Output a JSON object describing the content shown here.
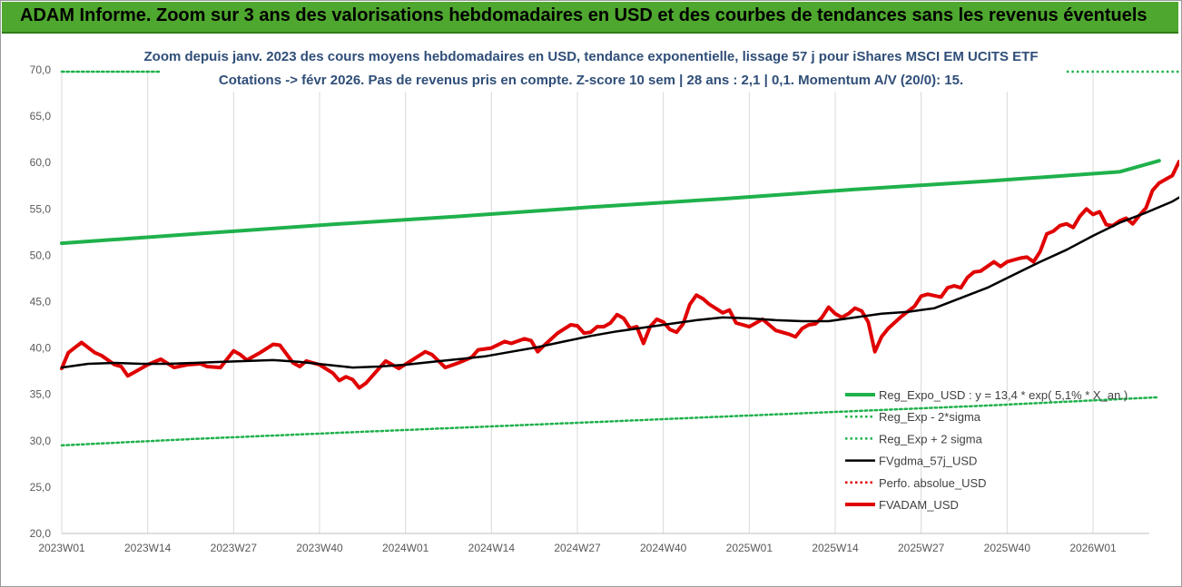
{
  "header": {
    "title": "ADAM Informe. Zoom sur 3 ans des valorisations hebdomadaires en USD et des courbes de tendances sans les revenus éventuels"
  },
  "chart_data": {
    "type": "line",
    "title_line1": "Zoom depuis janv. 2023 des cours moyens hebdomadaires en USD, tendance exponentielle, lissage 57 j pour iShares MSCI EM UCITS ETF",
    "title_line2": "Cotations -> févr 2026. Pas de revenus pris en compte. Z-score 10 sem | 28 ans : 2,1 | 0,1. Momentum A/V (20/0): 15.",
    "x_tick_labels": [
      "2023W01",
      "2023W14",
      "2023W27",
      "2023W40",
      "2024W01",
      "2024W14",
      "2024W27",
      "2024W40",
      "2025W01",
      "2025W14",
      "2025W27",
      "2025W40",
      "2026W01"
    ],
    "y_tick_labels": [
      "70,0",
      "65,0",
      "60,0",
      "55,0",
      "50,0",
      "45,0",
      "40,0",
      "35,0",
      "30,0",
      "25,0",
      "20,0"
    ],
    "ylim": [
      20,
      70
    ],
    "grid": "vertical",
    "legend_position": "bottom-right",
    "colors": {
      "reg_expo": "#1fb14c",
      "reg_lower": "#1fb14c",
      "reg_upper": "#1fb14c",
      "fvgdma": "#000000",
      "perfo": "#e00000",
      "fvadam": "#e00000",
      "header": "#4ea72e"
    },
    "series": [
      {
        "name": "Reg_Expo_USD : y = 13,4 * exp( 5,1% * X_an.)",
        "style": "solid-thick",
        "points": [
          [
            0,
            51.3
          ],
          [
            20,
            52.3
          ],
          [
            40,
            53.3
          ],
          [
            60,
            54.2
          ],
          [
            80,
            55.2
          ],
          [
            100,
            56.1
          ],
          [
            120,
            57.1
          ],
          [
            140,
            58.0
          ],
          [
            160,
            59.0
          ],
          [
            166,
            60.2
          ]
        ]
      },
      {
        "name": "Reg_Exp - 2*sigma",
        "style": "dotted",
        "points": [
          [
            0,
            29.5
          ],
          [
            20,
            30.2
          ],
          [
            40,
            30.8
          ],
          [
            60,
            31.4
          ],
          [
            80,
            32.0
          ],
          [
            100,
            32.6
          ],
          [
            120,
            33.2
          ],
          [
            140,
            33.8
          ],
          [
            166,
            34.7
          ]
        ]
      },
      {
        "name": "Reg_Exp + 2 sigma",
        "style": "dotted",
        "points": [
          [
            0,
            69.8
          ],
          [
            15,
            69.8
          ]
        ]
      },
      {
        "name": "FVgdma_57j_USD",
        "style": "solid",
        "points": [
          [
            0,
            37.9
          ],
          [
            4,
            38.3
          ],
          [
            8,
            38.4
          ],
          [
            12,
            38.3
          ],
          [
            16,
            38.3
          ],
          [
            20,
            38.4
          ],
          [
            24,
            38.5
          ],
          [
            28,
            38.6
          ],
          [
            32,
            38.7
          ],
          [
            36,
            38.5
          ],
          [
            40,
            38.2
          ],
          [
            44,
            37.9
          ],
          [
            48,
            38.0
          ],
          [
            52,
            38.2
          ],
          [
            56,
            38.5
          ],
          [
            60,
            38.8
          ],
          [
            64,
            39.1
          ],
          [
            68,
            39.6
          ],
          [
            72,
            40.1
          ],
          [
            76,
            40.7
          ],
          [
            80,
            41.3
          ],
          [
            84,
            41.8
          ],
          [
            88,
            42.2
          ],
          [
            92,
            42.6
          ],
          [
            96,
            43.0
          ],
          [
            100,
            43.3
          ],
          [
            104,
            43.2
          ],
          [
            108,
            43.0
          ],
          [
            112,
            42.9
          ],
          [
            116,
            42.9
          ],
          [
            120,
            43.3
          ],
          [
            124,
            43.7
          ],
          [
            128,
            43.9
          ],
          [
            132,
            44.3
          ],
          [
            136,
            45.4
          ],
          [
            140,
            46.5
          ],
          [
            144,
            47.9
          ],
          [
            148,
            49.3
          ],
          [
            152,
            50.6
          ],
          [
            156,
            52.1
          ],
          [
            160,
            53.5
          ],
          [
            164,
            54.6
          ],
          [
            168,
            55.8
          ],
          [
            172,
            57.5
          ],
          [
            176,
            59.0
          ],
          [
            180,
            60.2
          ]
        ]
      },
      {
        "name": "Perfo. absolue_USD",
        "style": "dotted",
        "points": []
      },
      {
        "name": "FVADAM_USD",
        "style": "solid-thick",
        "points": [
          [
            0,
            37.8
          ],
          [
            1,
            39.5
          ],
          [
            3,
            40.6
          ],
          [
            5,
            39.5
          ],
          [
            6,
            39.2
          ],
          [
            8,
            38.2
          ],
          [
            9,
            38.0
          ],
          [
            10,
            37.0
          ],
          [
            11,
            37.4
          ],
          [
            13,
            38.2
          ],
          [
            15,
            38.8
          ],
          [
            17,
            37.9
          ],
          [
            19,
            38.2
          ],
          [
            21,
            38.3
          ],
          [
            22,
            38.0
          ],
          [
            24,
            37.9
          ],
          [
            26,
            39.7
          ],
          [
            27,
            39.3
          ],
          [
            28,
            38.7
          ],
          [
            30,
            39.5
          ],
          [
            32,
            40.4
          ],
          [
            33,
            40.3
          ],
          [
            35,
            38.4
          ],
          [
            36,
            38.0
          ],
          [
            37,
            38.6
          ],
          [
            39,
            38.2
          ],
          [
            41,
            37.3
          ],
          [
            42,
            36.5
          ],
          [
            43,
            36.9
          ],
          [
            44,
            36.6
          ],
          [
            45,
            35.7
          ],
          [
            46,
            36.2
          ],
          [
            48,
            37.8
          ],
          [
            49,
            38.6
          ],
          [
            51,
            37.8
          ],
          [
            53,
            38.7
          ],
          [
            55,
            39.6
          ],
          [
            56,
            39.3
          ],
          [
            58,
            37.9
          ],
          [
            60,
            38.4
          ],
          [
            62,
            39.0
          ],
          [
            63,
            39.8
          ],
          [
            65,
            40.0
          ],
          [
            67,
            40.7
          ],
          [
            68,
            40.5
          ],
          [
            70,
            41.0
          ],
          [
            71,
            40.8
          ],
          [
            72,
            39.6
          ],
          [
            73,
            40.3
          ],
          [
            75,
            41.6
          ],
          [
            77,
            42.5
          ],
          [
            78,
            42.4
          ],
          [
            79,
            41.6
          ],
          [
            80,
            41.7
          ],
          [
            81,
            42.3
          ],
          [
            82,
            42.3
          ],
          [
            83,
            42.7
          ],
          [
            84,
            43.6
          ],
          [
            85,
            43.2
          ],
          [
            86,
            42.1
          ],
          [
            87,
            42.3
          ],
          [
            88,
            40.5
          ],
          [
            89,
            42.3
          ],
          [
            90,
            43.1
          ],
          [
            91,
            42.8
          ],
          [
            92,
            42.0
          ],
          [
            93,
            41.7
          ],
          [
            94,
            42.6
          ],
          [
            95,
            44.7
          ],
          [
            96,
            45.7
          ],
          [
            97,
            45.3
          ],
          [
            98,
            44.7
          ],
          [
            100,
            43.8
          ],
          [
            101,
            44.1
          ],
          [
            102,
            42.7
          ],
          [
            103,
            42.5
          ],
          [
            104,
            42.3
          ],
          [
            105,
            42.7
          ],
          [
            106,
            43.1
          ],
          [
            107,
            42.5
          ],
          [
            108,
            41.9
          ],
          [
            110,
            41.5
          ],
          [
            111,
            41.2
          ],
          [
            112,
            42.1
          ],
          [
            113,
            42.5
          ],
          [
            114,
            42.6
          ],
          [
            115,
            43.3
          ],
          [
            116,
            44.4
          ],
          [
            117,
            43.7
          ],
          [
            118,
            43.3
          ],
          [
            119,
            43.7
          ],
          [
            120,
            44.3
          ],
          [
            121,
            44.0
          ],
          [
            122,
            42.8
          ],
          [
            123,
            39.6
          ],
          [
            124,
            41.2
          ],
          [
            125,
            42.1
          ],
          [
            127,
            43.4
          ],
          [
            129,
            44.5
          ],
          [
            130,
            45.6
          ],
          [
            131,
            45.8
          ],
          [
            133,
            45.5
          ],
          [
            134,
            46.5
          ],
          [
            135,
            46.7
          ],
          [
            136,
            46.5
          ],
          [
            137,
            47.6
          ],
          [
            138,
            48.2
          ],
          [
            139,
            48.3
          ],
          [
            141,
            49.3
          ],
          [
            142,
            48.8
          ],
          [
            143,
            49.3
          ],
          [
            144,
            49.5
          ],
          [
            145,
            49.7
          ],
          [
            146,
            49.8
          ],
          [
            147,
            49.3
          ],
          [
            148,
            50.4
          ],
          [
            149,
            52.3
          ],
          [
            150,
            52.6
          ],
          [
            151,
            53.2
          ],
          [
            152,
            53.4
          ],
          [
            153,
            53.0
          ],
          [
            154,
            54.2
          ],
          [
            155,
            55.0
          ],
          [
            156,
            54.4
          ],
          [
            157,
            54.7
          ],
          [
            158,
            53.3
          ],
          [
            159,
            53.2
          ],
          [
            160,
            53.7
          ],
          [
            161,
            54.0
          ],
          [
            162,
            53.4
          ],
          [
            163,
            54.3
          ],
          [
            164,
            55.1
          ],
          [
            165,
            57.0
          ],
          [
            166,
            57.8
          ],
          [
            167,
            58.2
          ],
          [
            168,
            58.6
          ],
          [
            169,
            60.1
          ],
          [
            170,
            59.6
          ],
          [
            171,
            59.2
          ],
          [
            172,
            60.9
          ],
          [
            173,
            61.1
          ],
          [
            174,
            62.7
          ]
        ]
      }
    ]
  }
}
